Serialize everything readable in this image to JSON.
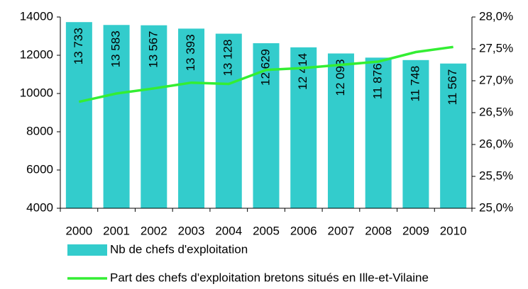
{
  "chart_data": {
    "type": "bar",
    "categories": [
      "2000",
      "2001",
      "2002",
      "2003",
      "2004",
      "2005",
      "2006",
      "2007",
      "2008",
      "2009",
      "2010"
    ],
    "series": [
      {
        "name": "Nb de chefs d'exploitation",
        "color": "#33cccc",
        "type": "bar",
        "values": [
          13733,
          13583,
          13567,
          13393,
          13128,
          12629,
          12414,
          12093,
          11876,
          11748,
          11567
        ],
        "value_labels": [
          "13 733",
          "13 583",
          "13 567",
          "13 393",
          "13 128",
          "12 629",
          "12 414",
          "12 093",
          "11 876",
          "11 748",
          "11 567"
        ]
      },
      {
        "name": "Part des chefs d'exploitation bretons situés en Ille-et-Vilaine",
        "color": "#33ee33",
        "type": "line",
        "axis": "y2",
        "values": [
          26.67,
          26.8,
          26.88,
          26.97,
          26.95,
          27.17,
          27.2,
          27.25,
          27.3,
          27.45,
          27.53
        ]
      }
    ],
    "ylim": [
      4000,
      14000
    ],
    "yticks": [
      4000,
      6000,
      8000,
      10000,
      12000,
      14000
    ],
    "y2lim": [
      25,
      28
    ],
    "y2ticks": [
      {
        "value": 25,
        "label": "25,0%"
      },
      {
        "value": 25.5,
        "label": "25,5%"
      },
      {
        "value": 26,
        "label": "26,0%"
      },
      {
        "value": 26.5,
        "label": "26,5%"
      },
      {
        "value": 27,
        "label": "27,0%"
      },
      {
        "value": 27.5,
        "label": "27,5%"
      },
      {
        "value": 28,
        "label": "28,0%"
      }
    ],
    "legend": "bottom"
  }
}
